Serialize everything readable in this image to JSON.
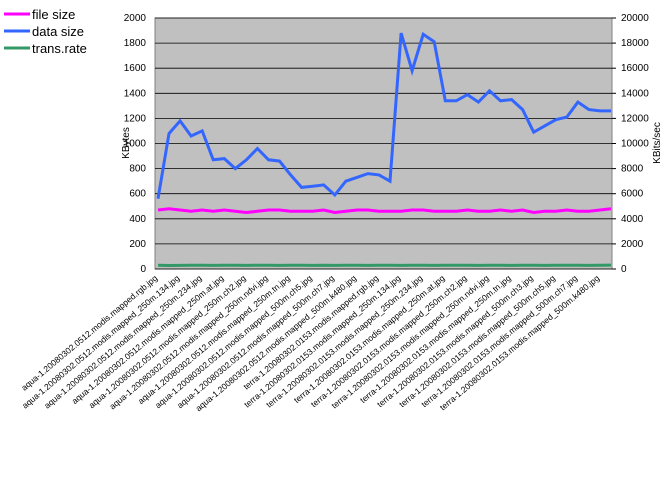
{
  "chart_data": {
    "type": "line",
    "categories": [
      "aqua-1.20080302.0512.modis.mapped.rgb.jpg",
      null,
      "aqua-1.20080302.0512.modis.mapped_250m.134.jpg",
      null,
      "aqua-1.20080302.0512.modis.mapped_250m.234.jpg",
      null,
      "aqua-1.20080302.0512.modis.mapped_250m.at.jpg",
      null,
      "aqua-1.20080302.0512.modis.mapped_250m.ch2.jpg",
      null,
      "aqua-1.20080302.0512.modis.mapped_250m.ndvi.jpg",
      null,
      "aqua-1.20080302.0512.modis.mapped_250m.tn.jpg",
      null,
      "aqua-1.20080302.0512.modis.mapped_500m.ch5.jpg",
      null,
      "aqua-1.20080302.0512.modis.mapped_500m.ch7.jpg",
      null,
      "aqua-1.20080302.0512.modis.mapped_500m.k480.jpg",
      null,
      "terra-1.20080302.0153.modis.mapped.rgb.jpg",
      null,
      "terra-1.20080302.0153.modis.mapped_250m.134.jpg",
      null,
      "terra-1.20080302.0153.modis.mapped_250m.234.jpg",
      null,
      "terra-1.20080302.0153.modis.mapped_250m.at.jpg",
      null,
      "terra-1.20080302.0153.modis.mapped_250m.ch2.jpg",
      null,
      "terra-1.20080302.0153.modis.mapped_250m.ndvi.jpg",
      null,
      "terra-1.20080302.0153.modis.mapped_250m.tn.jpg",
      null,
      "terra-1.20080302.0153.modis.mapped_500m.ch3.jpg",
      null,
      "terra-1.20080302.0153.modis.mapped_500m.ch5.jpg",
      null,
      "terra-1.20080302.0153.modis.mapped_500m.ch7.jpg",
      null,
      "terra-1.20080302.0153.modis.mapped_500m.k480.jpg",
      null
    ],
    "series": [
      {
        "name": "file size",
        "color": "#ff00ff",
        "values": [
          470,
          480,
          470,
          460,
          470,
          460,
          470,
          460,
          450,
          460,
          470,
          470,
          460,
          460,
          460,
          470,
          450,
          460,
          470,
          470,
          460,
          460,
          460,
          470,
          470,
          460,
          460,
          460,
          470,
          460,
          460,
          470,
          460,
          470,
          450,
          460,
          460,
          470,
          460,
          460,
          470,
          480
        ]
      },
      {
        "name": "data size",
        "color": "#3366ff",
        "values": [
          560,
          1080,
          1180,
          1060,
          1100,
          870,
          880,
          800,
          870,
          960,
          870,
          860,
          750,
          650,
          660,
          670,
          590,
          700,
          730,
          760,
          750,
          700,
          1880,
          1580,
          1870,
          1810,
          1340,
          1340,
          1390,
          1330,
          1420,
          1340,
          1350,
          1270,
          1090,
          1140,
          1190,
          1210,
          1330,
          1270,
          1260,
          1260
        ]
      },
      {
        "name": "trans.rate",
        "color": "#339966",
        "axis": "y2",
        "values": [
          300,
          280,
          290,
          300,
          300,
          290,
          300,
          300,
          290,
          300,
          300,
          290,
          300,
          300,
          290,
          300,
          290,
          300,
          300,
          290,
          300,
          300,
          290,
          300,
          300,
          290,
          300,
          300,
          300,
          290,
          300,
          300,
          290,
          300,
          300,
          290,
          300,
          300,
          300,
          290,
          300,
          310
        ]
      }
    ],
    "ylabel": "KBytes",
    "y2label": "KBits/sec",
    "ylim": [
      0,
      2000
    ],
    "yticks": [
      0,
      200,
      400,
      600,
      800,
      1000,
      1200,
      1400,
      1600,
      1800,
      2000
    ],
    "y2lim": [
      0,
      20000
    ],
    "y2ticks": [
      0,
      2000,
      4000,
      6000,
      8000,
      10000,
      12000,
      14000,
      16000,
      18000,
      20000
    ],
    "grid": true,
    "legend": "top-left"
  }
}
